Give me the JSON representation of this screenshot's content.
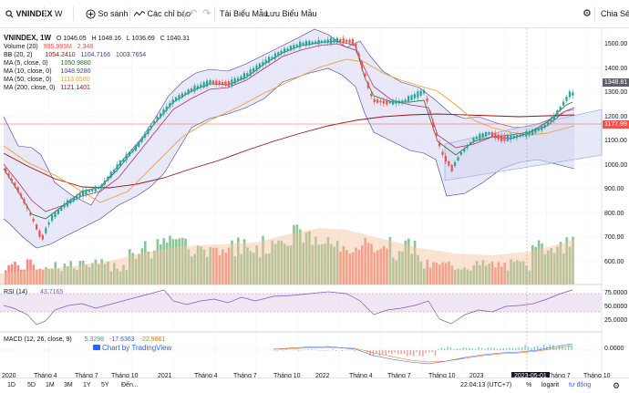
{
  "toolbar": {
    "symbol": "VNINDEX",
    "interval": "W",
    "compare": "So sánh",
    "indicators": "Các chỉ báo",
    "load_template": "Tải Biểu Mẫu",
    "save_template": "Lưu Biểu Mẫu",
    "share": "Chia Sẻ"
  },
  "legend": {
    "title": "VNINDEX, 1W",
    "open": "O 1046.05",
    "high": "H 1048.16",
    "low": "L 1036.69",
    "close": "C 1040.31",
    "volume": {
      "label": "Volume (20)",
      "v1": "995.993M",
      "v2": "2.348"
    },
    "bb": {
      "label": "BB (20, 2)",
      "v1": "1054.2410",
      "v2": "1104.7166",
      "v3": "1003.7654"
    },
    "ma5": {
      "label": "MA (5, close, 0)",
      "value": "1050.9880"
    },
    "ma10": {
      "label": "MA (10, close, 0)",
      "value": "1048.9280"
    },
    "ma50": {
      "label": "MA (50, close, 0)",
      "value": "1113.6580"
    },
    "ma200": {
      "label": "MA (200, close, 0)",
      "value": "1121.1401"
    },
    "rsi": {
      "label": "RSI (14)",
      "value": "43.7165"
    },
    "macd": {
      "label": "MACD (12, 26, close, 9)",
      "v1": "5.3298",
      "v2": "-17.6363",
      "v3": "-22.9661"
    }
  },
  "price_axis": [
    "1500.00",
    "1400.00",
    "1300.00",
    "1200.00",
    "1100.00",
    "1000.00",
    "900.00",
    "800.00",
    "700.00",
    "600.00"
  ],
  "price_tags": {
    "last": "1348.81",
    "current": "1177.99"
  },
  "rsi_axis": [
    "75.0000",
    "50.0000",
    "25.0000"
  ],
  "macd_axis": [
    "0.0000"
  ],
  "time_axis": [
    "2020",
    "Tháng 4",
    "Tháng 7",
    "Tháng 10",
    "2021",
    "Tháng 4",
    "Tháng 7",
    "Tháng 10",
    "2022",
    "Tháng 4",
    "Tháng 7",
    "Tháng 10",
    "2023",
    "Tháng 7",
    "Tháng 10"
  ],
  "time_highlight": "2023-05-01",
  "watermark": "Chart by TradingView",
  "bottom": {
    "ranges": [
      "1D",
      "5D",
      "1M",
      "3M",
      "1Y",
      "5Y",
      "Đến..."
    ],
    "clock": "22:04:13 (UTC+7)",
    "percent": "%",
    "log": "logarit",
    "auto": "tự động"
  },
  "colors": {
    "up": "#26a69a",
    "down": "#ef5350",
    "bb_fill": "#c9c9ef",
    "ma50": "#f0a030",
    "ma200": "#a01010"
  }
}
